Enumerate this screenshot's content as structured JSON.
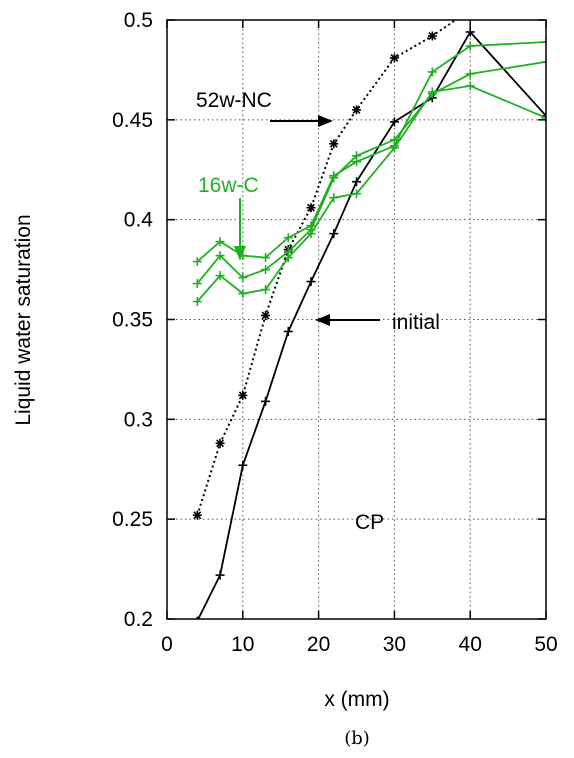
{
  "chart_data": {
    "type": "line",
    "xlabel": "x (mm)",
    "ylabel": "Liquid water saturation",
    "xlim": [
      0,
      50
    ],
    "ylim": [
      0.2,
      0.5
    ],
    "xticks": [
      "0",
      "10",
      "20",
      "30",
      "40",
      "50"
    ],
    "yticks": [
      "0.2",
      "0.25",
      "0.3",
      "0.35",
      "0.4",
      "0.45",
      "0.5"
    ],
    "grid": "dotted",
    "series": [
      {
        "name": "initial",
        "color": "#000000",
        "style": "solid",
        "marker": "plus",
        "x": [
          4,
          7,
          10,
          13,
          16,
          19,
          22,
          25,
          30,
          35,
          40,
          50
        ],
        "y": [
          0.199,
          0.222,
          0.277,
          0.309,
          0.344,
          0.369,
          0.393,
          0.419,
          0.449,
          0.461,
          0.494,
          0.452
        ]
      },
      {
        "name": "52w-NC",
        "color": "#000000",
        "style": "dotted",
        "marker": "star",
        "x": [
          4,
          7,
          10,
          13,
          16,
          19,
          22,
          25,
          30,
          35,
          40
        ],
        "y": [
          0.252,
          0.288,
          0.312,
          0.352,
          0.385,
          0.406,
          0.438,
          0.455,
          0.481,
          0.492,
          0.505
        ]
      },
      {
        "name": "16w-C",
        "color": "#22b022",
        "style": "solid",
        "marker": "plus",
        "x": [
          4,
          7,
          10,
          13,
          16,
          19,
          22,
          25,
          30,
          35,
          40,
          50
        ],
        "y": [
          0.379,
          0.389,
          0.382,
          0.381,
          0.391,
          0.397,
          0.422,
          0.429,
          0.437,
          0.474,
          0.487,
          0.489
        ]
      },
      {
        "name": "16w-C",
        "color": "#22b022",
        "style": "solid",
        "marker": "plus",
        "x": [
          4,
          7,
          10,
          13,
          16,
          19,
          22,
          25,
          30,
          35,
          40,
          50
        ],
        "y": [
          0.368,
          0.382,
          0.371,
          0.375,
          0.384,
          0.395,
          0.421,
          0.432,
          0.44,
          0.463,
          0.473,
          0.479
        ]
      },
      {
        "name": "16w-C",
        "color": "#22b022",
        "style": "solid",
        "marker": "plus",
        "x": [
          4,
          7,
          10,
          13,
          16,
          19,
          22,
          25,
          30,
          35,
          40,
          50
        ],
        "y": [
          0.359,
          0.372,
          0.363,
          0.365,
          0.381,
          0.393,
          0.411,
          0.413,
          0.436,
          0.464,
          0.467,
          0.451
        ]
      }
    ],
    "annotations": {
      "nc": "52w-NC",
      "c": "16w-C",
      "initial": "initial",
      "cp": "CP"
    },
    "caption": "(b)"
  }
}
